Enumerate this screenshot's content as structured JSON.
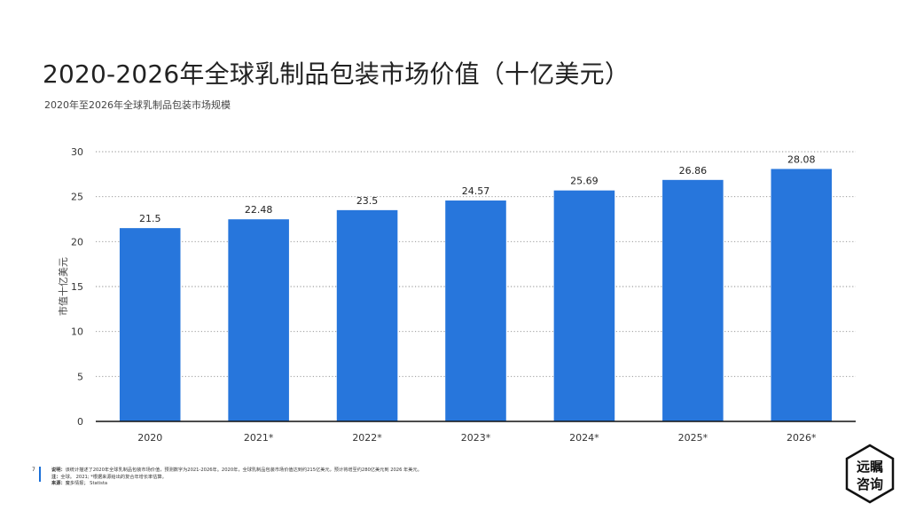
{
  "title": "2020-2026年全球乳制品包装市场价值（十亿美元）",
  "subtitle": "2020年至2026年全球乳制品包装市场规模",
  "page_number": "7",
  "footer": {
    "desc_label": "说明：",
    "desc_text": "该统计描述了2020年全球乳制品包装市场价值，预测数字为2021-2026年。2020年，全球乳制品包装市场价值达到约215亿美元，预计将增至约280亿美元到 2026 年美元。",
    "note_label": "注：",
    "note_text": "全球。 2021; *根据来源给出的复合年增长率估算。",
    "source_label": "来源：",
    "source_text": "魔多情报； Statista"
  },
  "logo": {
    "line1": "远瞩",
    "line2": "咨询"
  },
  "colors": {
    "bar": "#2776dc",
    "accent": "#1a6fd8",
    "grid": "#8a8a8a",
    "axis": "#111111"
  },
  "chart_data": {
    "type": "bar",
    "categories": [
      "2020",
      "2021*",
      "2022*",
      "2023*",
      "2024*",
      "2025*",
      "2026*"
    ],
    "values": [
      21.5,
      22.48,
      23.5,
      24.57,
      25.69,
      26.86,
      28.08
    ],
    "value_labels": [
      "21.5",
      "22.48",
      "23.5",
      "24.57",
      "25.69",
      "26.86",
      "28.08"
    ],
    "ylabel": "市值十亿美元",
    "xlabel": "",
    "ylim": [
      0,
      30
    ],
    "yticks": [
      0,
      5,
      10,
      15,
      20,
      25,
      30
    ],
    "grid": true,
    "grid_style": "dotted",
    "legend": "none"
  }
}
